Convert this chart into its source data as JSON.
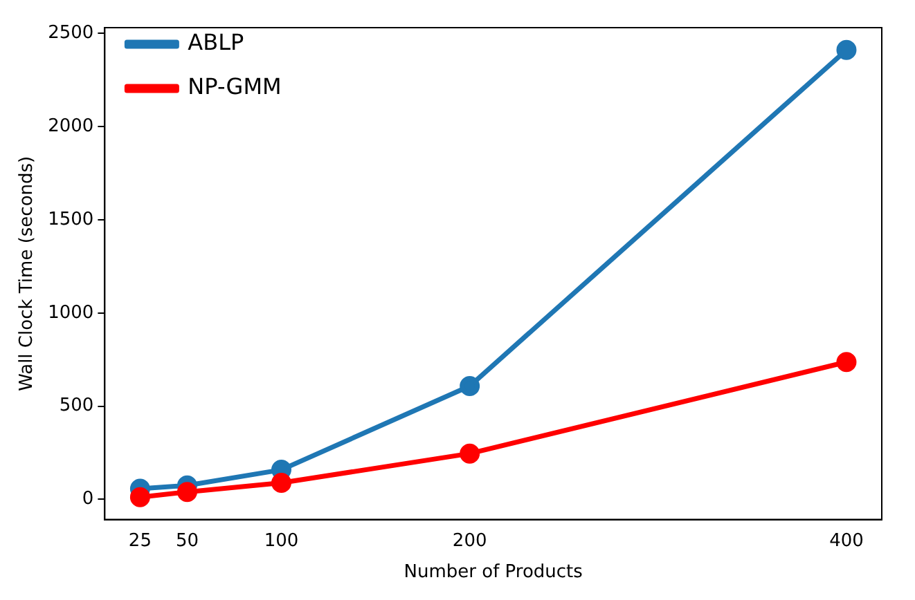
{
  "chart_data": {
    "type": "line",
    "xlabel": "Number of Products",
    "ylabel": "Wall Clock Time (seconds)",
    "x": [
      25,
      50,
      100,
      200,
      400
    ],
    "series": [
      {
        "name": "ABLP",
        "color": "#1f77b4",
        "values": [
          57,
          75,
          159,
          608,
          2411
        ]
      },
      {
        "name": "NP-GMM",
        "color": "#ff0000",
        "values": [
          12,
          40,
          89,
          246,
          737
        ]
      }
    ],
    "xlim": [
      6.25,
      418.75
    ],
    "xticks": [
      25,
      50,
      100,
      200,
      400
    ],
    "ylim": [
      -108,
      2531
    ],
    "yticks": [
      0,
      500,
      1000,
      1500,
      2000,
      2500
    ],
    "grid": false,
    "legend": "top left",
    "marker": "circle",
    "line_style": "solid"
  }
}
